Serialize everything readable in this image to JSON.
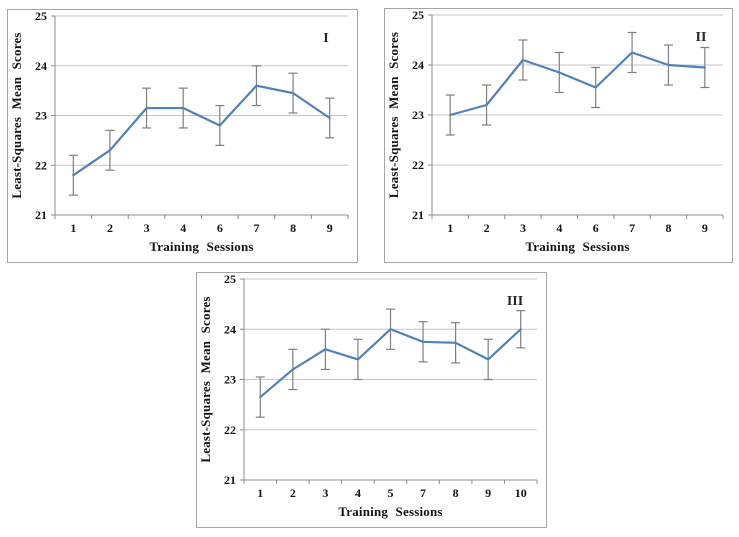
{
  "figure": {
    "description": "Three line charts of least-squares mean scores across training sessions, panels I, II and III",
    "background": "#ffffff"
  },
  "colors": {
    "line": "#4f81bd",
    "error_bar": "#7f7f7f",
    "gridline": "#c6c6c6",
    "axis": "#8c8c8c",
    "text": "#141414",
    "panel_border": "#a6a6a6"
  },
  "chart_data": [
    {
      "type": "line",
      "panel_label": "I",
      "title": "",
      "xlabel": "Training Sessions",
      "ylabel": "Least-Squares Mean Scores",
      "categories": [
        "1",
        "2",
        "3",
        "4",
        "6",
        "7",
        "8",
        "9"
      ],
      "series": [
        {
          "name": "I",
          "values": [
            21.8,
            22.3,
            23.15,
            23.15,
            22.8,
            23.6,
            23.45,
            22.95
          ],
          "errors": [
            0.4,
            0.4,
            0.4,
            0.4,
            0.4,
            0.4,
            0.4,
            0.4
          ]
        }
      ],
      "ylim": [
        21,
        25
      ],
      "yticks": [
        21,
        22,
        23,
        24,
        25
      ],
      "grid": true,
      "legend": "none",
      "error_bars": true
    },
    {
      "type": "line",
      "panel_label": "II",
      "title": "",
      "xlabel": "Training Sessions",
      "ylabel": "Least-Squares Mean Scores",
      "categories": [
        "1",
        "2",
        "3",
        "4",
        "6",
        "7",
        "8",
        "9"
      ],
      "series": [
        {
          "name": "II",
          "values": [
            23.0,
            23.2,
            24.1,
            23.85,
            23.55,
            24.25,
            24.0,
            23.95
          ],
          "errors": [
            0.4,
            0.4,
            0.4,
            0.4,
            0.4,
            0.4,
            0.4,
            0.4
          ]
        }
      ],
      "ylim": [
        21,
        25
      ],
      "yticks": [
        21,
        22,
        23,
        24,
        25
      ],
      "grid": true,
      "legend": "none",
      "error_bars": true
    },
    {
      "type": "line",
      "panel_label": "III",
      "title": "",
      "xlabel": "Training Sessions",
      "ylabel": "Least-Squares Mean Scores",
      "categories": [
        "1",
        "2",
        "3",
        "4",
        "5",
        "7",
        "8",
        "9",
        "10"
      ],
      "series": [
        {
          "name": "III",
          "values": [
            22.65,
            23.2,
            23.6,
            23.4,
            24.0,
            23.75,
            23.73,
            23.4,
            24.0
          ],
          "errors": [
            0.4,
            0.4,
            0.4,
            0.4,
            0.4,
            0.4,
            0.4,
            0.4,
            0.37
          ]
        }
      ],
      "ylim": [
        21,
        25
      ],
      "yticks": [
        21,
        22,
        23,
        24,
        25
      ],
      "grid": true,
      "legend": "none",
      "error_bars": true
    }
  ]
}
